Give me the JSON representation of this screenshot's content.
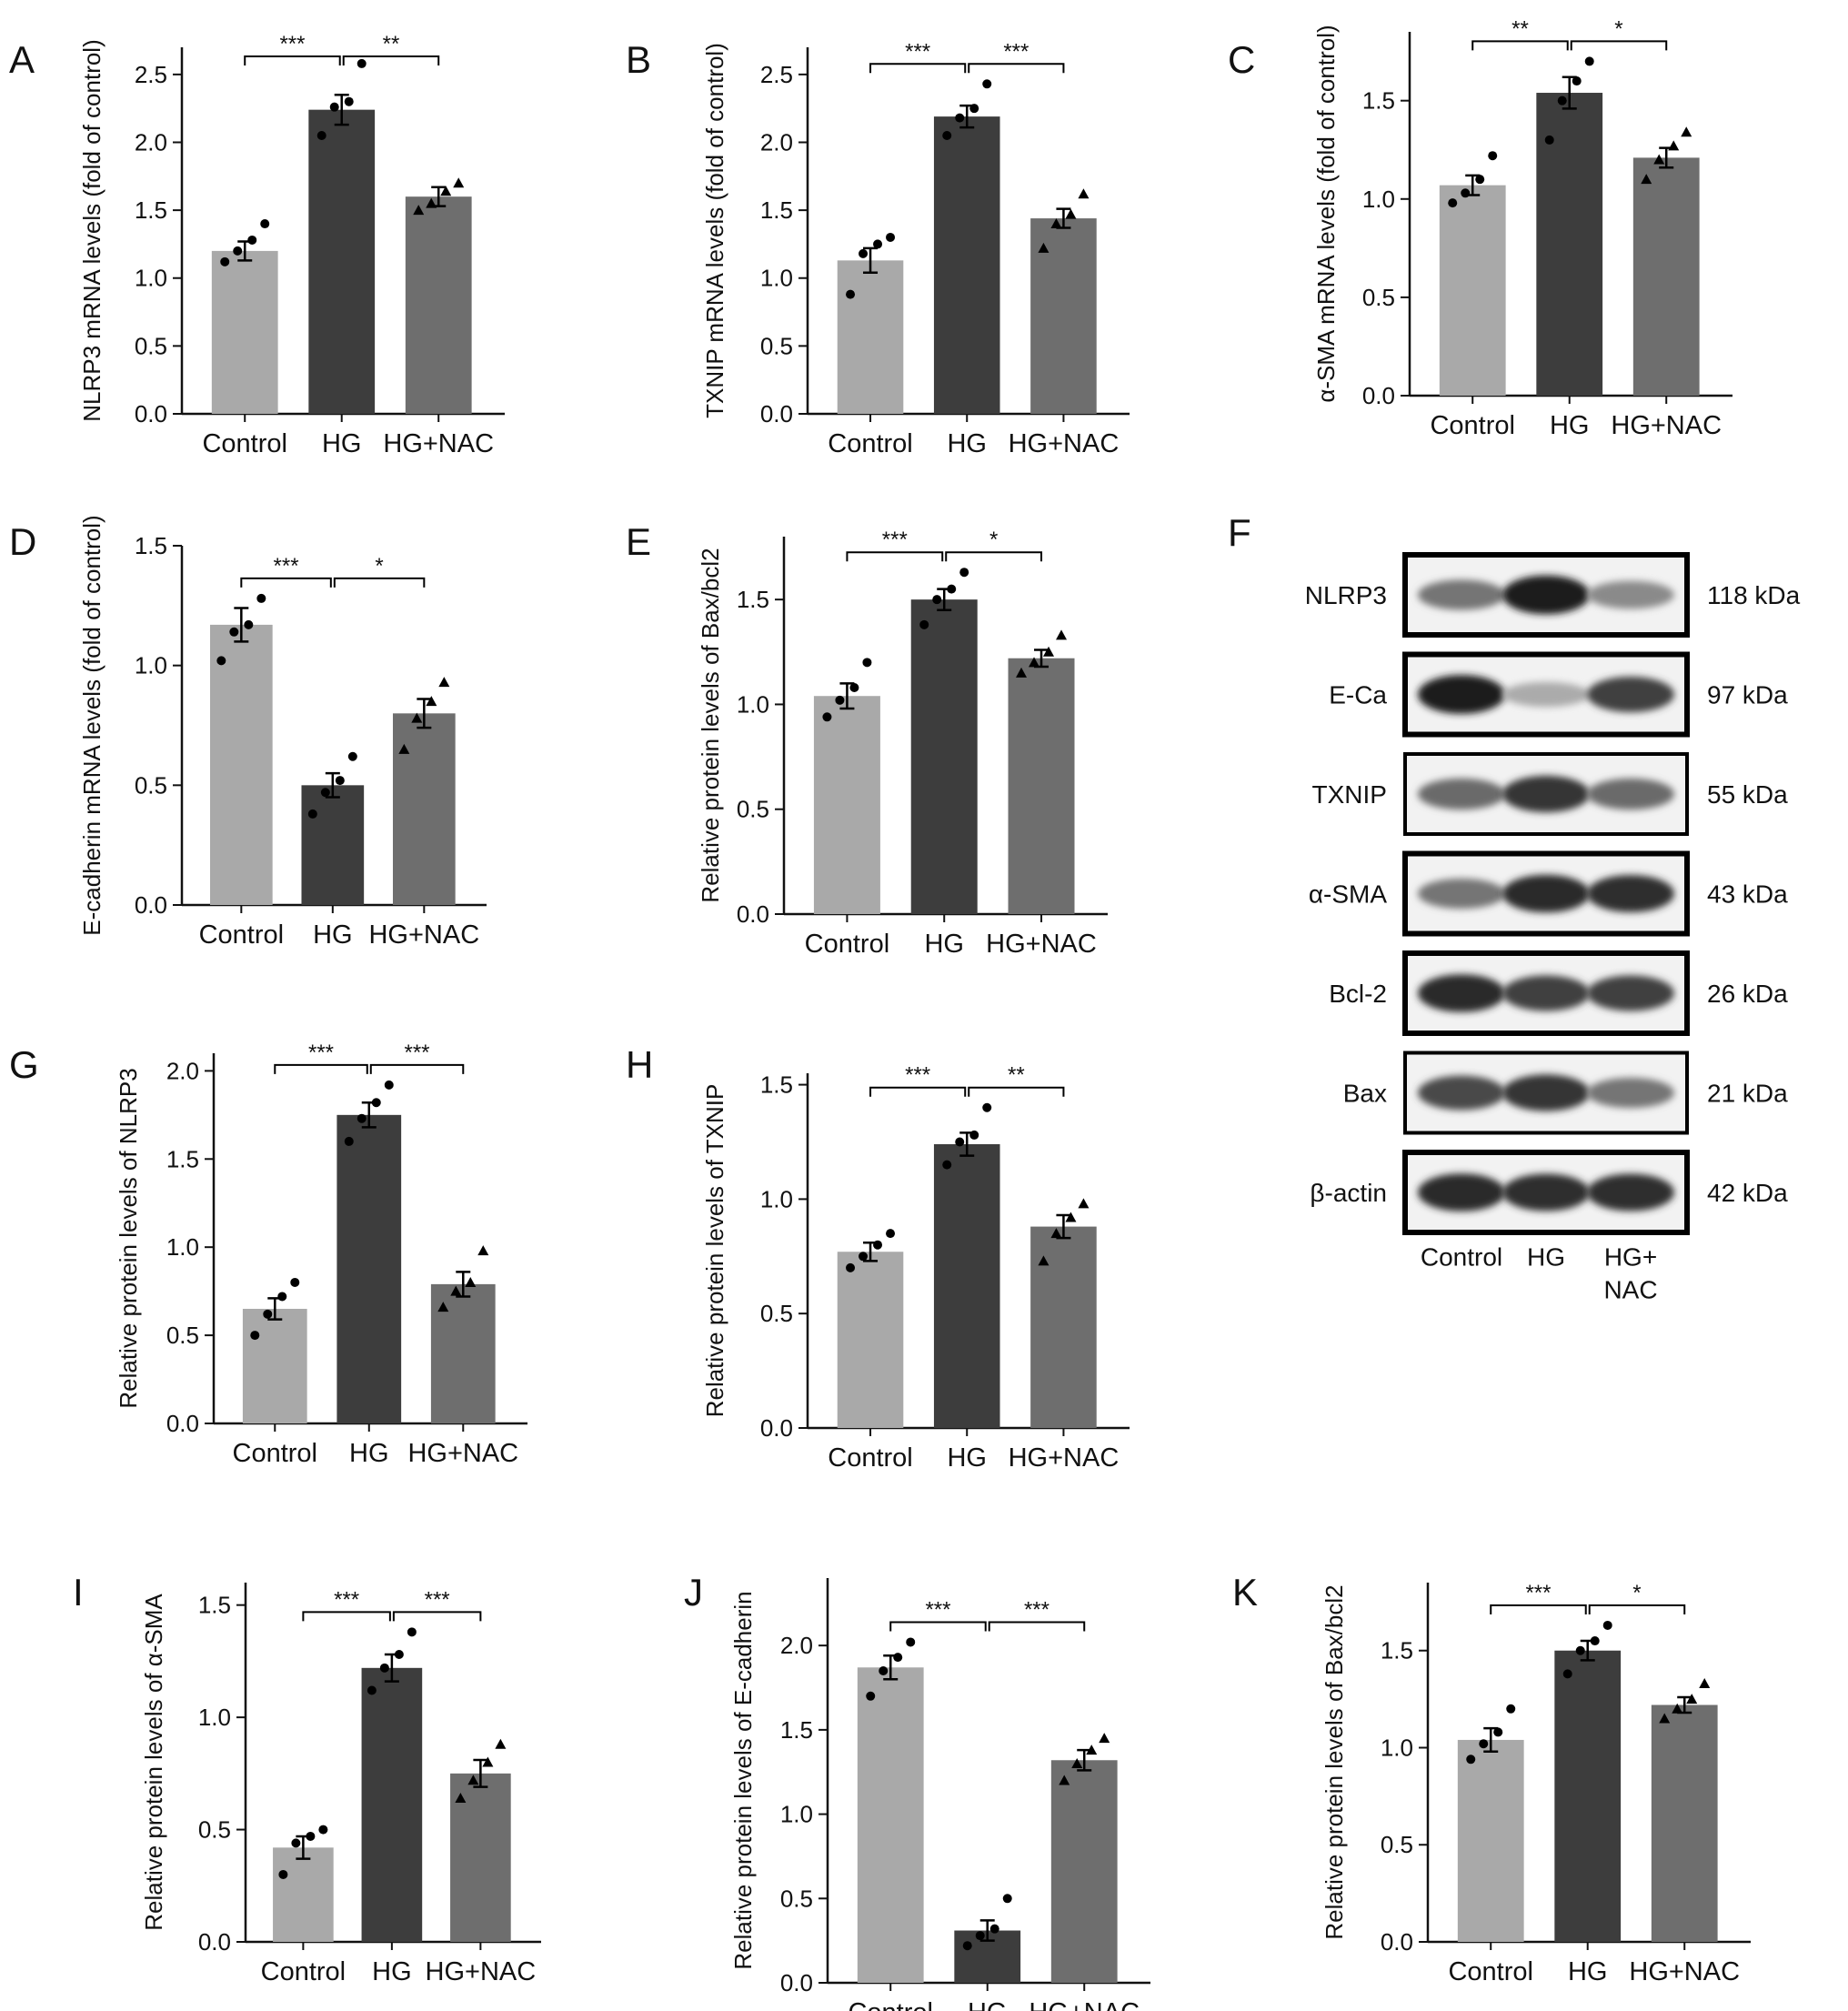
{
  "categories": [
    "Control",
    "HG",
    "HG+NAC"
  ],
  "colors": {
    "Control": "#a9a9a9",
    "HG": "#3d3d3d",
    "HG+NAC": "#6e6e6e",
    "axis": "#111111"
  },
  "chart_data": [
    {
      "id": "A",
      "type": "bar",
      "letter": "A",
      "ylabel": "NLRP3 mRNA levels (fold of control)",
      "categories": [
        "Control",
        "HG",
        "HG+NAC"
      ],
      "values": [
        1.2,
        2.24,
        1.6
      ],
      "errors": [
        0.07,
        0.11,
        0.07
      ],
      "points": [
        [
          1.12,
          1.2,
          1.28,
          1.4
        ],
        [
          2.05,
          2.26,
          2.3,
          2.58
        ],
        [
          1.5,
          1.55,
          1.64,
          1.7
        ]
      ],
      "ylim": [
        0,
        2.7
      ],
      "yticks": [
        0.0,
        0.5,
        1.0,
        1.5,
        2.0,
        2.5
      ],
      "tick_labels": [
        "0.0",
        "0.5",
        "1.0",
        "1.5",
        "2.0",
        "2.5"
      ],
      "significance": [
        {
          "from": 0,
          "to": 1,
          "label": "***"
        },
        {
          "from": 1,
          "to": 2,
          "label": "**"
        }
      ]
    },
    {
      "id": "B",
      "type": "bar",
      "letter": "B",
      "ylabel": "TXNIP mRNA levels (fold of control)",
      "categories": [
        "Control",
        "HG",
        "HG+NAC"
      ],
      "values": [
        1.13,
        2.19,
        1.44
      ],
      "errors": [
        0.09,
        0.08,
        0.07
      ],
      "points": [
        [
          0.88,
          1.18,
          1.25,
          1.3
        ],
        [
          2.05,
          2.18,
          2.25,
          2.43
        ],
        [
          1.22,
          1.4,
          1.47,
          1.62
        ]
      ],
      "ylim": [
        0,
        2.7
      ],
      "yticks": [
        0.0,
        0.5,
        1.0,
        1.5,
        2.0,
        2.5
      ],
      "tick_labels": [
        "0.0",
        "0.5",
        "1.0",
        "1.5",
        "2.0",
        "2.5"
      ],
      "significance": [
        {
          "from": 0,
          "to": 1,
          "label": "***"
        },
        {
          "from": 1,
          "to": 2,
          "label": "***"
        }
      ]
    },
    {
      "id": "C",
      "type": "bar",
      "letter": "C",
      "ylabel": "α-SMA mRNA levels (fold of control)",
      "categories": [
        "Control",
        "HG",
        "HG+NAC"
      ],
      "values": [
        1.07,
        1.54,
        1.21
      ],
      "errors": [
        0.05,
        0.08,
        0.05
      ],
      "points": [
        [
          0.98,
          1.03,
          1.1,
          1.22
        ],
        [
          1.3,
          1.5,
          1.6,
          1.7
        ],
        [
          1.1,
          1.2,
          1.27,
          1.34
        ]
      ],
      "ylim": [
        0,
        1.85
      ],
      "yticks": [
        0.0,
        0.5,
        1.0,
        1.5
      ],
      "tick_labels": [
        "0.0",
        "0.5",
        "1.0",
        "1.5"
      ],
      "significance": [
        {
          "from": 0,
          "to": 1,
          "label": "**"
        },
        {
          "from": 1,
          "to": 2,
          "label": "*"
        }
      ]
    },
    {
      "id": "D",
      "type": "bar",
      "letter": "D",
      "ylabel": "E-cadherin mRNA levels (fold of control)",
      "categories": [
        "Control",
        "HG",
        "HG+NAC"
      ],
      "values": [
        1.17,
        0.5,
        0.8
      ],
      "errors": [
        0.07,
        0.05,
        0.06
      ],
      "points": [
        [
          1.02,
          1.14,
          1.17,
          1.28
        ],
        [
          0.38,
          0.47,
          0.52,
          0.62
        ],
        [
          0.65,
          0.78,
          0.85,
          0.93
        ]
      ],
      "ylim": [
        0,
        1.5
      ],
      "yticks": [
        0.0,
        0.5,
        1.0,
        1.5
      ],
      "tick_labels": [
        "0.0",
        "0.5",
        "1.0",
        "1.5"
      ],
      "significance": [
        {
          "from": 0,
          "to": 1,
          "label": "***"
        },
        {
          "from": 1,
          "to": 2,
          "label": "*"
        }
      ]
    },
    {
      "id": "E",
      "type": "bar",
      "letter": "E",
      "ylabel": "Relative protein levels of Bax/bcl2",
      "categories": [
        "Control",
        "HG",
        "HG+NAC"
      ],
      "values": [
        1.04,
        1.5,
        1.22
      ],
      "errors": [
        0.06,
        0.05,
        0.04
      ],
      "points": [
        [
          0.94,
          1.02,
          1.08,
          1.2
        ],
        [
          1.38,
          1.5,
          1.55,
          1.63
        ],
        [
          1.15,
          1.2,
          1.25,
          1.33
        ]
      ],
      "ylim": [
        0,
        1.8
      ],
      "yticks": [
        0.0,
        0.5,
        1.0,
        1.5
      ],
      "tick_labels": [
        "0.0",
        "0.5",
        "1.0",
        "1.5"
      ],
      "significance": [
        {
          "from": 0,
          "to": 1,
          "label": "***"
        },
        {
          "from": 1,
          "to": 2,
          "label": "*"
        }
      ]
    },
    {
      "id": "G",
      "type": "bar",
      "letter": "G",
      "ylabel": "Relative protein levels of NLRP3",
      "categories": [
        "Control",
        "HG",
        "HG+NAC"
      ],
      "values": [
        0.65,
        1.75,
        0.79
      ],
      "errors": [
        0.06,
        0.07,
        0.07
      ],
      "points": [
        [
          0.5,
          0.62,
          0.72,
          0.8
        ],
        [
          1.6,
          1.73,
          1.82,
          1.92
        ],
        [
          0.66,
          0.75,
          0.8,
          0.98
        ]
      ],
      "ylim": [
        0,
        2.1
      ],
      "yticks": [
        0.0,
        0.5,
        1.0,
        1.5,
        2.0
      ],
      "tick_labels": [
        "0.0",
        "0.5",
        "1.0",
        "1.5",
        "2.0"
      ],
      "significance": [
        {
          "from": 0,
          "to": 1,
          "label": "***"
        },
        {
          "from": 1,
          "to": 2,
          "label": "***"
        }
      ]
    },
    {
      "id": "H",
      "type": "bar",
      "letter": "H",
      "ylabel": "Relative protein levels of TXNIP",
      "categories": [
        "Control",
        "HG",
        "HG+NAC"
      ],
      "values": [
        0.77,
        1.24,
        0.88
      ],
      "errors": [
        0.04,
        0.05,
        0.05
      ],
      "points": [
        [
          0.7,
          0.75,
          0.8,
          0.85
        ],
        [
          1.15,
          1.25,
          1.28,
          1.4
        ],
        [
          0.73,
          0.85,
          0.92,
          0.98
        ]
      ],
      "ylim": [
        0,
        1.55
      ],
      "yticks": [
        0.0,
        0.5,
        1.0,
        1.5
      ],
      "tick_labels": [
        "0.0",
        "0.5",
        "1.0",
        "1.5"
      ],
      "significance": [
        {
          "from": 0,
          "to": 1,
          "label": "***"
        },
        {
          "from": 1,
          "to": 2,
          "label": "**"
        }
      ]
    },
    {
      "id": "I",
      "type": "bar",
      "letter": "I",
      "ylabel": "Relative protein levels of α-SMA",
      "categories": [
        "Control",
        "HG",
        "HG+NAC"
      ],
      "values": [
        0.42,
        1.22,
        0.75
      ],
      "errors": [
        0.05,
        0.06,
        0.06
      ],
      "points": [
        [
          0.3,
          0.44,
          0.47,
          0.5
        ],
        [
          1.12,
          1.22,
          1.28,
          1.38
        ],
        [
          0.64,
          0.72,
          0.8,
          0.88
        ]
      ],
      "ylim": [
        0,
        1.6
      ],
      "yticks": [
        0.0,
        0.5,
        1.0,
        1.5
      ],
      "tick_labels": [
        "0.0",
        "0.5",
        "1.0",
        "1.5"
      ],
      "significance": [
        {
          "from": 0,
          "to": 1,
          "label": "***"
        },
        {
          "from": 1,
          "to": 2,
          "label": "***"
        }
      ]
    },
    {
      "id": "J",
      "type": "bar",
      "letter": "J",
      "ylabel": "Relative protein levels of E-cadherin",
      "categories": [
        "Control",
        "HG",
        "HG+NAC"
      ],
      "values": [
        1.87,
        0.31,
        1.32
      ],
      "errors": [
        0.07,
        0.06,
        0.06
      ],
      "points": [
        [
          1.7,
          1.85,
          1.93,
          2.02
        ],
        [
          0.22,
          0.28,
          0.32,
          0.5
        ],
        [
          1.2,
          1.3,
          1.38,
          1.45
        ]
      ],
      "ylim": [
        0,
        2.4
      ],
      "yticks": [
        0.0,
        0.5,
        1.0,
        1.5,
        2.0
      ],
      "tick_labels": [
        "0.0",
        "0.5",
        "1.0",
        "1.5",
        "2.0"
      ],
      "significance": [
        {
          "from": 0,
          "to": 1,
          "label": "***"
        },
        {
          "from": 1,
          "to": 2,
          "label": "***"
        }
      ]
    },
    {
      "id": "K",
      "type": "bar",
      "letter": "K",
      "ylabel": "Relative protein levels of Bax/bcl2",
      "categories": [
        "Control",
        "HG",
        "HG+NAC"
      ],
      "values": [
        1.04,
        1.5,
        1.22
      ],
      "errors": [
        0.06,
        0.05,
        0.04
      ],
      "points": [
        [
          0.94,
          1.02,
          1.08,
          1.2
        ],
        [
          1.38,
          1.5,
          1.55,
          1.63
        ],
        [
          1.15,
          1.2,
          1.25,
          1.33
        ]
      ],
      "ylim": [
        0,
        1.85
      ],
      "yticks": [
        0.0,
        0.5,
        1.0,
        1.5
      ],
      "tick_labels": [
        "0.0",
        "0.5",
        "1.0",
        "1.5"
      ],
      "significance": [
        {
          "from": 0,
          "to": 1,
          "label": "***"
        },
        {
          "from": 1,
          "to": 2,
          "label": "*"
        }
      ]
    }
  ],
  "western_blot": {
    "letter": "F",
    "lanes": [
      "Control",
      "HG",
      "HG+"
    ],
    "lane_extra": "NAC",
    "rows": [
      {
        "protein": "NLRP3",
        "size": "118 kDa",
        "intensity": [
          0.55,
          0.95,
          0.45
        ],
        "box_weight": "heavy"
      },
      {
        "protein": "E-Ca",
        "size": "97 kDa",
        "intensity": [
          0.95,
          0.3,
          0.8
        ],
        "box_weight": "heavy"
      },
      {
        "protein": "TXNIP",
        "size": "55 kDa",
        "intensity": [
          0.6,
          0.85,
          0.6
        ],
        "box_weight": "light"
      },
      {
        "protein": "α-SMA",
        "size": "43 kDa",
        "intensity": [
          0.55,
          0.9,
          0.88
        ],
        "box_weight": "heavy"
      },
      {
        "protein": "Bcl-2",
        "size": "26 kDa",
        "intensity": [
          0.9,
          0.8,
          0.8
        ],
        "box_weight": "heavy"
      },
      {
        "protein": "Bax",
        "size": "21 kDa",
        "intensity": [
          0.75,
          0.85,
          0.55
        ],
        "box_weight": "light"
      },
      {
        "protein": "β-actin",
        "size": "42 kDa",
        "intensity": [
          0.9,
          0.88,
          0.88
        ],
        "box_weight": "heavy"
      }
    ]
  }
}
